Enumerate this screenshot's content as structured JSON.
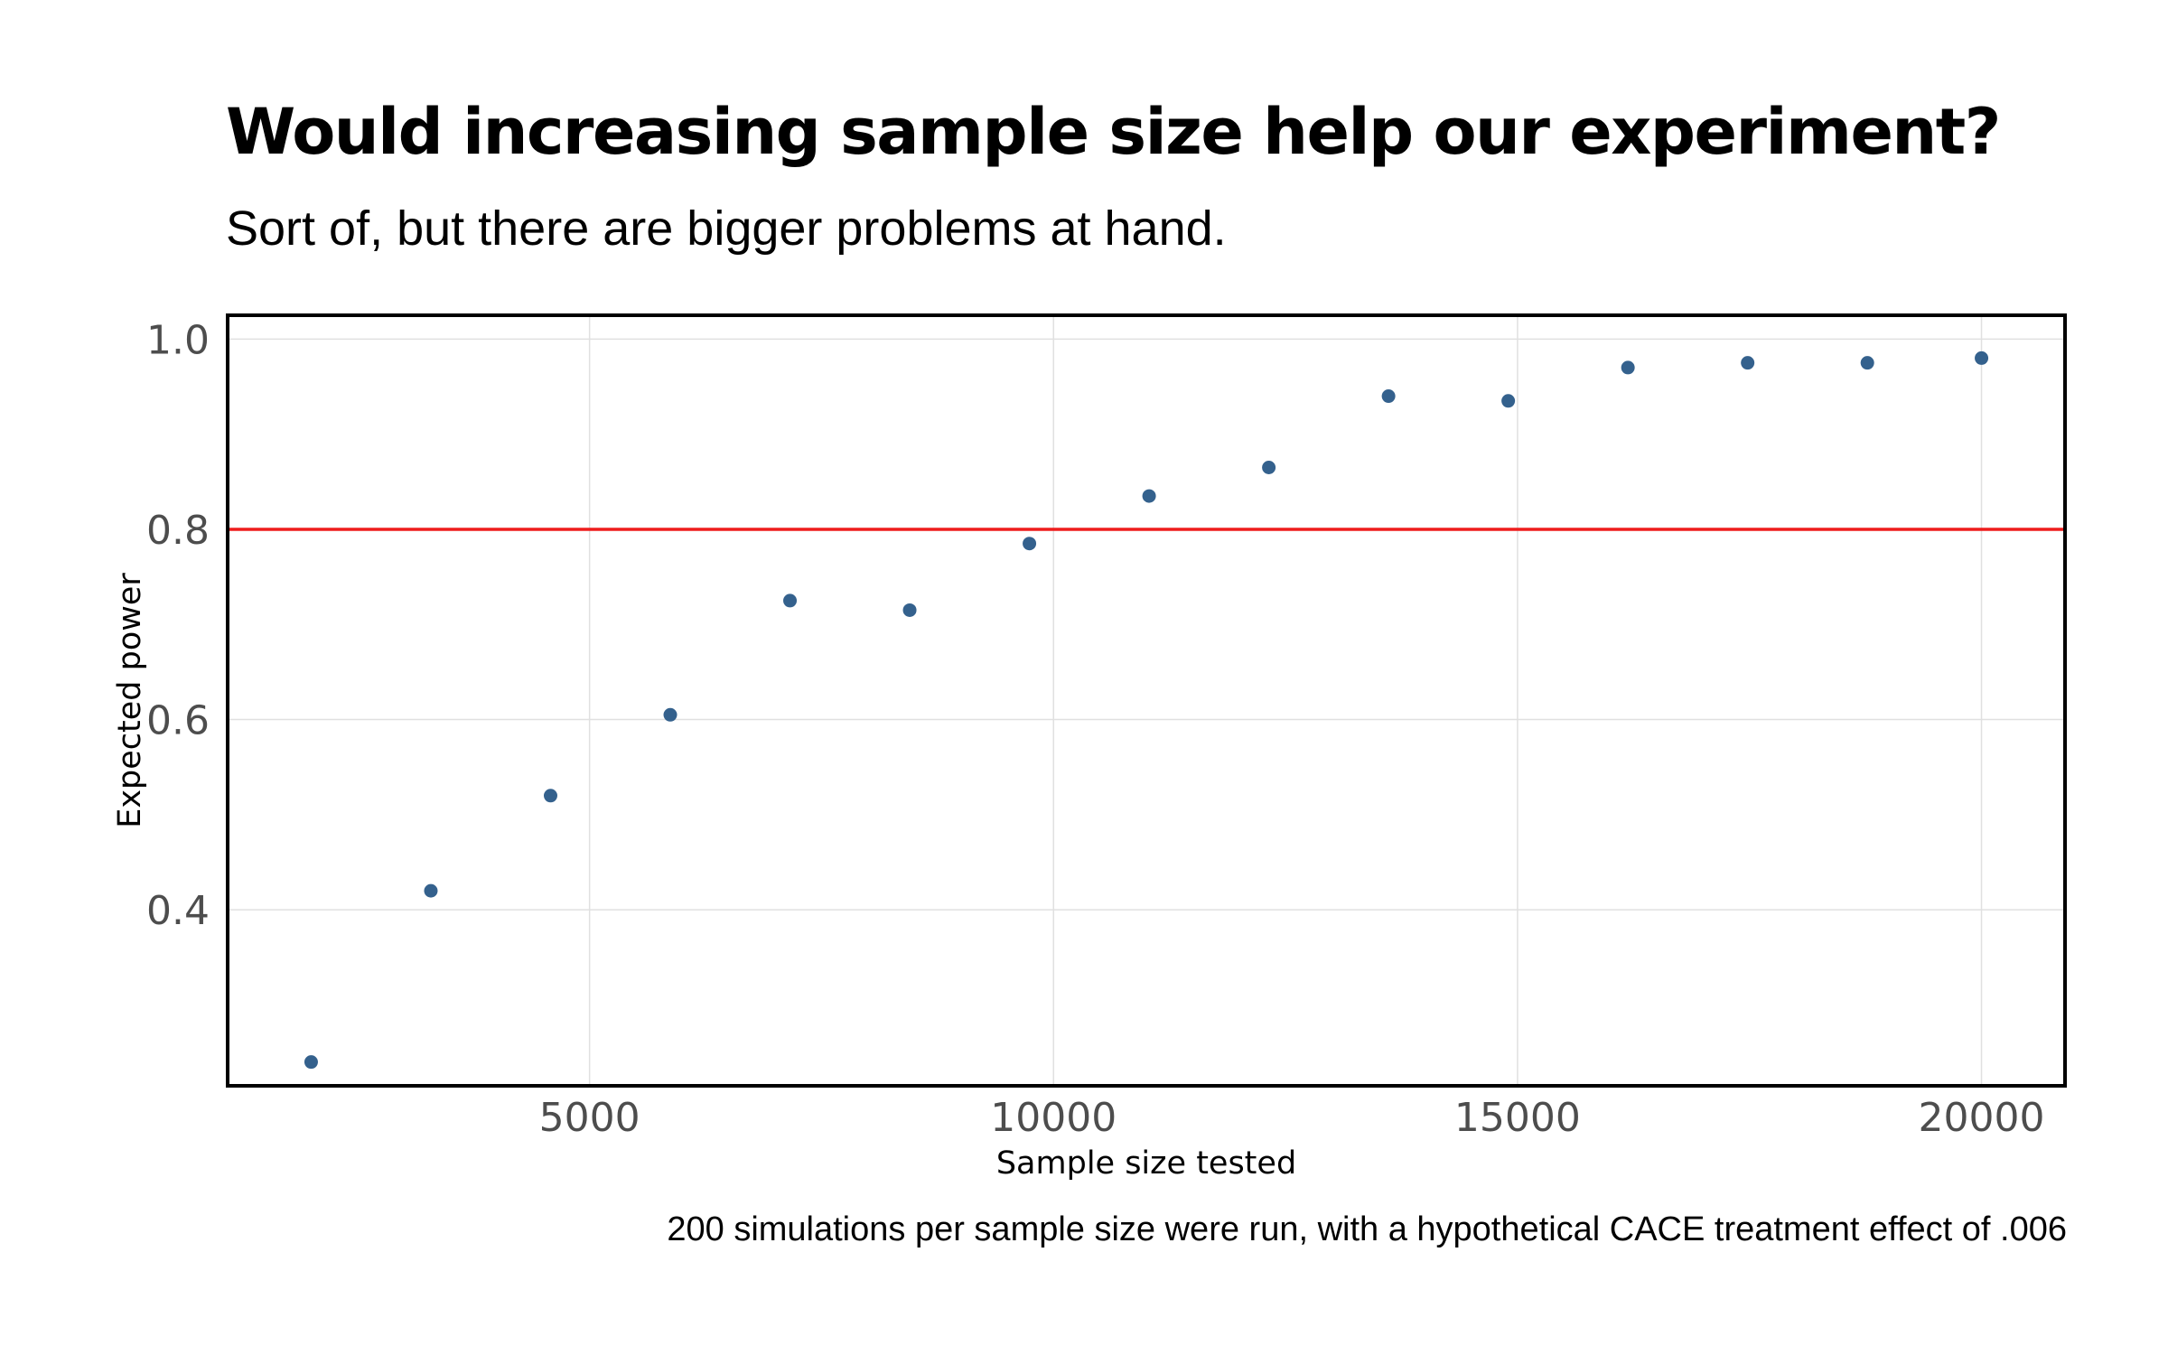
{
  "chart_data": {
    "type": "scatter",
    "title": "Would increasing sample size help our experiment?",
    "subtitle": "Sort of, but there are bigger problems at hand.",
    "caption": "200 simulations per sample size were run, with a hypothetical CACE treatment effect of .006",
    "xlabel": "Sample size tested",
    "ylabel": "Expected power",
    "xlim": [
      1100,
      20900
    ],
    "ylim": [
      0.215,
      1.025
    ],
    "x_ticks": [
      5000,
      10000,
      15000,
      20000
    ],
    "y_ticks": [
      0.4,
      0.6,
      0.8,
      1.0
    ],
    "y_tick_labels": [
      "0.4",
      "0.6",
      "0.8",
      "1.0"
    ],
    "grid": true,
    "reference_line": {
      "y": 0.8,
      "color": "#ee1c1c"
    },
    "point_color": "#34618d",
    "points": [
      {
        "x": 2000,
        "y": 0.24
      },
      {
        "x": 3290,
        "y": 0.42
      },
      {
        "x": 4580,
        "y": 0.52
      },
      {
        "x": 5870,
        "y": 0.605
      },
      {
        "x": 7160,
        "y": 0.725
      },
      {
        "x": 8450,
        "y": 0.715
      },
      {
        "x": 9740,
        "y": 0.785
      },
      {
        "x": 11030,
        "y": 0.835
      },
      {
        "x": 12320,
        "y": 0.865
      },
      {
        "x": 13610,
        "y": 0.94
      },
      {
        "x": 14900,
        "y": 0.935
      },
      {
        "x": 16190,
        "y": 0.97
      },
      {
        "x": 17480,
        "y": 0.975
      },
      {
        "x": 18770,
        "y": 0.975
      },
      {
        "x": 20000,
        "y": 0.98
      }
    ]
  }
}
